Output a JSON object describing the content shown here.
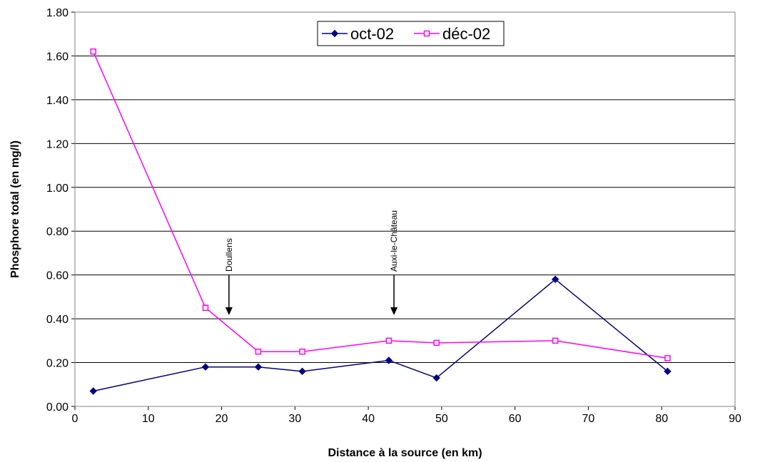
{
  "chart_data": {
    "type": "line",
    "xlabel": "Distance à la source (en km)",
    "ylabel": "Phosphore total (en mg/l)",
    "xlim": [
      0,
      90
    ],
    "ylim": [
      0,
      1.8
    ],
    "x_ticks": [
      "0",
      "10",
      "20",
      "30",
      "40",
      "50",
      "60",
      "70",
      "80",
      "90"
    ],
    "y_ticks": [
      "0.00",
      "0.20",
      "0.40",
      "0.60",
      "0.80",
      "1.00",
      "1.20",
      "1.40",
      "1.60",
      "1.80"
    ],
    "grid": "horizontal",
    "legend_position": "top-center",
    "series": [
      {
        "name": "oct-02",
        "color": "#000080",
        "marker": "diamond",
        "points": [
          [
            2.5,
            0.07
          ],
          [
            17.8,
            0.18
          ],
          [
            25,
            0.18
          ],
          [
            31,
            0.16
          ],
          [
            42.8,
            0.21
          ],
          [
            49.3,
            0.13
          ],
          [
            65.5,
            0.58
          ],
          [
            80.8,
            0.16
          ]
        ]
      },
      {
        "name": "déc-02",
        "color": "#FF00FF",
        "marker": "square",
        "points": [
          [
            2.5,
            1.62
          ],
          [
            17.8,
            0.45
          ],
          [
            25,
            0.25
          ],
          [
            31,
            0.25
          ],
          [
            42.8,
            0.3
          ],
          [
            49.3,
            0.29
          ],
          [
            65.5,
            0.3
          ],
          [
            80.8,
            0.22
          ]
        ]
      }
    ],
    "annotations": [
      {
        "text": "Doullens",
        "x": 21,
        "y": 0.42
      },
      {
        "text": "Auxi-le-Château",
        "x": 43.5,
        "y": 0.42
      }
    ]
  }
}
